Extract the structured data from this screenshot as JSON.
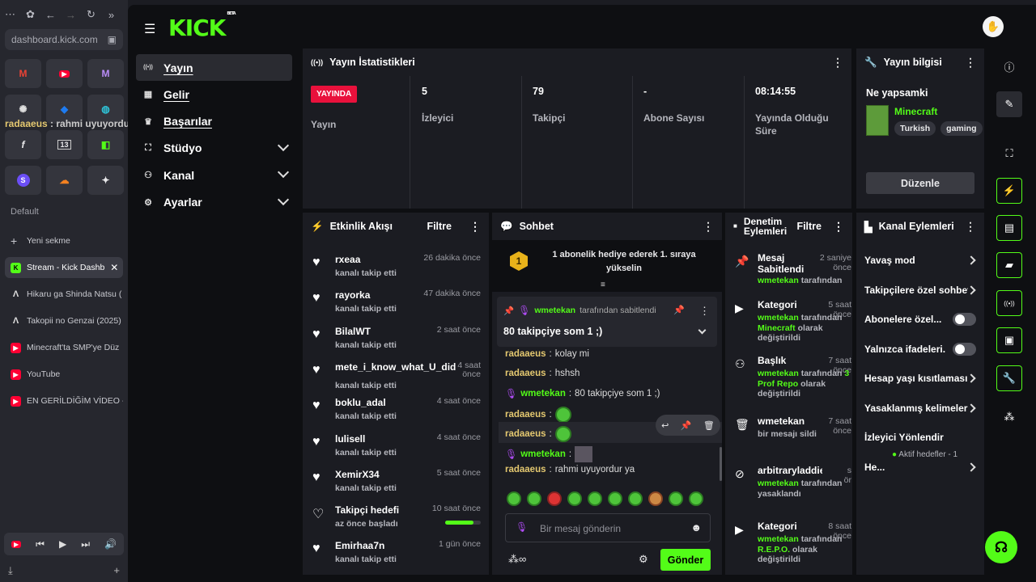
{
  "browser": {
    "url": "dashboard.kick.com",
    "overlay_user": "radaaeus",
    "overlay_msg": ": rahmi uyuyordur ya",
    "section_label": "Default",
    "new_tab": "Yeni sekme",
    "tabs": [
      {
        "title": "Stream - Kick Dashb",
        "icon": "kick-icon"
      },
      {
        "title": "Hikaru ga Shinda Natsu (",
        "icon": "triangle-icon"
      },
      {
        "title": "Takopii no Genzai (2025)",
        "icon": "triangle-icon"
      },
      {
        "title": "Minecraft'ta SMP'ye Düz",
        "icon": "youtube-icon"
      },
      {
        "title": "YouTube",
        "icon": "youtube-icon"
      },
      {
        "title": "EN GERİLDİĞİM VİDEO -",
        "icon": "youtube-icon"
      }
    ]
  },
  "app": {
    "logo": "KICK",
    "logo_badge": "BETA",
    "nav": [
      {
        "label": "Yayın",
        "icon": "broadcast-icon"
      },
      {
        "label": "Gelir",
        "icon": "income-icon"
      },
      {
        "label": "Başarılar",
        "icon": "trophy-icon"
      },
      {
        "label": "Stüdyo",
        "icon": "studio-icon"
      },
      {
        "label": "Kanal",
        "icon": "channel-icon"
      },
      {
        "label": "Ayarlar",
        "icon": "settings-icon"
      }
    ]
  },
  "stats": {
    "title": "Yayın İstatistikleri",
    "live_badge": "YAYINDA",
    "items": [
      {
        "value": "",
        "label": "Yayın"
      },
      {
        "value": "5",
        "label": "İzleyici"
      },
      {
        "value": "79",
        "label": "Takipçi"
      },
      {
        "value": "-",
        "label": "Abone Sayısı"
      },
      {
        "value": "08:14:55",
        "label": "Yayında Olduğu Süre"
      }
    ]
  },
  "info": {
    "title": "Yayın bilgisi",
    "what": "Ne yapsamki",
    "category": "Minecraft",
    "tags": [
      "Turkish",
      "gaming"
    ],
    "edit": "Düzenle"
  },
  "events": {
    "title": "Etkinlik Akışı",
    "filter": "Filtre",
    "items": [
      {
        "name": "rxeaa",
        "sub": "kanalı takip etti",
        "time": "26 dakika önce"
      },
      {
        "name": "rayorka",
        "sub": "kanalı takip etti",
        "time": "47 dakika önce"
      },
      {
        "name": "BilalWT",
        "sub": "kanalı takip etti",
        "time": "2 saat önce"
      },
      {
        "name": "mete_i_know_what_U_did",
        "sub": "kanalı takip etti",
        "time": "4 saat önce"
      },
      {
        "name": "boklu_adal",
        "sub": "kanalı takip etti",
        "time": "4 saat önce"
      },
      {
        "name": "lulisell",
        "sub": "kanalı takip etti",
        "time": "4 saat önce"
      },
      {
        "name": "XemirX34",
        "sub": "kanalı takip etti",
        "time": "5 saat önce"
      },
      {
        "name": "Takipçi hedefi",
        "sub": "az önce başladı",
        "time": "10 saat önce"
      },
      {
        "name": "Emirhaa7n",
        "sub": "kanalı takip etti",
        "time": "1 gün önce"
      }
    ],
    "goal_progress": 0.8
  },
  "chat": {
    "title": "Sohbet",
    "rank_badge": "1",
    "top_notice": "1 abonelik hediye ederek 1. sıraya yükselin",
    "pinned_by": "wmetekan",
    "pinned_suffix": "tarafından sabitlendi",
    "pinned_msg": "80 takipçiye som 1 ;)",
    "messages": [
      {
        "user": "radaaeus",
        "text": "kolay mi"
      },
      {
        "user": "radaaeus",
        "text": "hshsh"
      },
      {
        "user": "wmetekan",
        "text": "80 takipçiye som 1 ;)"
      },
      {
        "user": "radaaeus",
        "text": ""
      },
      {
        "user": "radaaeus",
        "text": ""
      },
      {
        "user": "wmetekan",
        "text": ""
      },
      {
        "user": "radaaeus",
        "text": "rahmi uyuyordur ya"
      }
    ],
    "placeholder": "Bir mesaj gönderin",
    "send": "Gönder"
  },
  "moderation": {
    "title": "Denetim Eylemleri",
    "filter": "Filtre",
    "items": [
      {
        "head": "Mesaj Sabitlendi",
        "time": "2 saniye önce",
        "user": "wmetekan",
        "rest": "tarafından",
        "icon": "pin-icon"
      },
      {
        "head": "Kategori",
        "time": "5 saat önce",
        "user": "wmetekan",
        "rest": "tarafından",
        "cat": "Minecraft",
        "tail": "olarak değiştirildi",
        "icon": "category-icon"
      },
      {
        "head": "Başlık",
        "time": "7 saat önce",
        "user": "wmetekan",
        "rest": "tarafından",
        "cat": "3 Prof Repo",
        "tail": "olarak değiştirildi",
        "icon": "title-icon"
      },
      {
        "head": "wmetekan",
        "time": "7 saat önce",
        "rest2": "bir mesajı sildi",
        "icon": "trash-icon"
      },
      {
        "head": "arbitraryladdiefu",
        "time": "s ör",
        "user": "wmetekan",
        "rest": "tarafından",
        "tail": "yasaklandı",
        "icon": "ban-icon"
      },
      {
        "head": "Kategori",
        "time": "8 saat önce",
        "user": "wmetekan",
        "rest": "tarafından",
        "cat": "R.E.P.O.",
        "tail": "olarak değiştirildi",
        "icon": "category-icon"
      }
    ]
  },
  "channel_actions": {
    "title": "Kanal Eylemleri",
    "items": [
      {
        "label": "Yavaş mod",
        "control": "chevron"
      },
      {
        "label": "Takipçilere özel sohbet",
        "control": "chevron"
      },
      {
        "label": "Abonelere özel...",
        "control": "toggle"
      },
      {
        "label": "Yalnızca ifadeleri...",
        "control": "toggle"
      },
      {
        "label": "Hesap yaşı kısıtlaması",
        "control": "chevron"
      },
      {
        "label": "Yasaklanmış kelimeler",
        "control": "chevron"
      },
      {
        "label": "İzleyici Yönlendir",
        "control": "none"
      },
      {
        "label": "He...",
        "control": "chevron"
      }
    ],
    "goals_status": "Aktif hedefler - 1"
  }
}
